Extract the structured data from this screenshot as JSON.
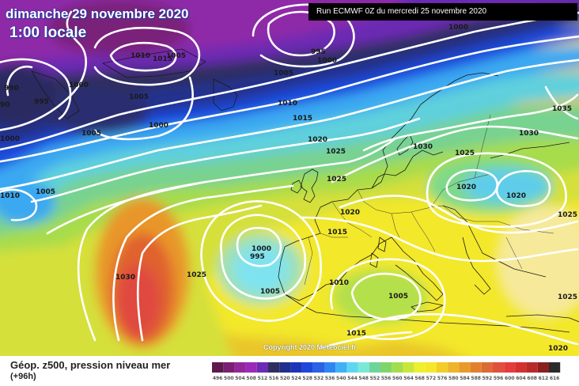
{
  "header": {
    "date": "dimanche 29 novembre 2020",
    "local_time": "1:00 locale",
    "run": "Run ECMWF 0Z du mercredi 25 novembre 2020"
  },
  "copyright": "Copyright 2020 Meteociel.fr",
  "legend": {
    "title": "Géop. z500, pression niveau mer",
    "subtitle": "(+96h)",
    "values": [
      "496",
      "500",
      "504",
      "508",
      "512",
      "516",
      "520",
      "524",
      "528",
      "532",
      "536",
      "540",
      "544",
      "548",
      "552",
      "556",
      "560",
      "564",
      "568",
      "572",
      "576",
      "580",
      "584",
      "588",
      "592",
      "596",
      "600",
      "604",
      "608",
      "612",
      "616"
    ],
    "colors": [
      "#5e1a4c",
      "#7a1f73",
      "#93279a",
      "#9a2bb9",
      "#6d2ab4",
      "#2f2f5e",
      "#1f2f8c",
      "#1b35b8",
      "#1f47d9",
      "#2b62e6",
      "#2f86f0",
      "#3fb0f5",
      "#5ed6f2",
      "#7be8d6",
      "#6fd49c",
      "#7fd46a",
      "#a3dc4c",
      "#cbe63a",
      "#ecf02e",
      "#f6e728",
      "#f3cd28",
      "#eeb42a",
      "#e89a2c",
      "#e2802f",
      "#dc6a35",
      "#e0503c",
      "#e43c3c",
      "#d43030",
      "#b82a2a",
      "#8a1f1f",
      "#2b2b2b"
    ]
  },
  "pressure_labels": [
    "1010",
    "1005",
    "1015",
    "990",
    "995",
    "1000",
    "1005",
    "1000",
    "1005",
    "995",
    "1000",
    "1000",
    "1005",
    "1010",
    "1015",
    "1020",
    "1025",
    "1020",
    "1025",
    "1030",
    "1030",
    "1035",
    "1025",
    "1020",
    "1020",
    "1025",
    "1010",
    "1005",
    "1015",
    "1000",
    "995",
    "1005",
    "1030",
    "1025",
    "1010",
    "1005",
    "1015",
    "1025",
    "1020",
    "90",
    "1000"
  ]
}
